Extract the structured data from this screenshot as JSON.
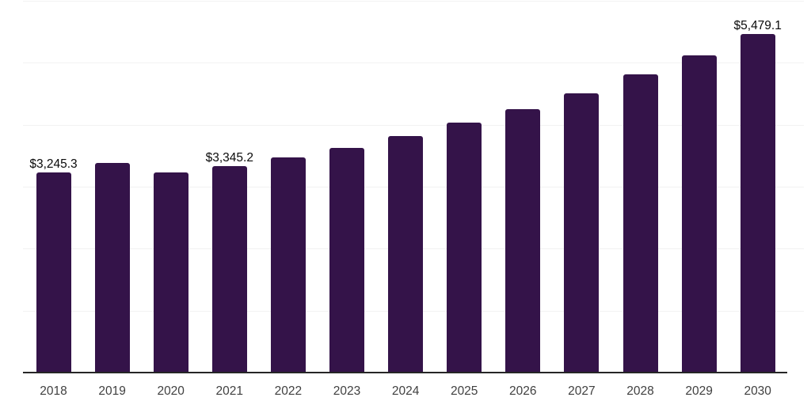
{
  "chart_data": {
    "type": "bar",
    "title": "",
    "xlabel": "",
    "ylabel": "",
    "categories": [
      "2018",
      "2019",
      "2020",
      "2021",
      "2022",
      "2023",
      "2024",
      "2025",
      "2026",
      "2027",
      "2028",
      "2029",
      "2030"
    ],
    "values": [
      3245.3,
      3390,
      3240,
      3345.2,
      3480,
      3640,
      3830,
      4050,
      4265,
      4520,
      4825,
      5130,
      5479.1
    ],
    "value_labels": [
      "$3,245.3",
      "",
      "",
      "$3,345.2",
      "",
      "",
      "",
      "",
      "",
      "",
      "",
      "",
      "$5,479.1"
    ],
    "ylim": [
      0,
      6000
    ],
    "gridline_step": 1000,
    "grid_on": true,
    "legend_position": "none",
    "y_tick_labels_shown": false,
    "colors": {
      "bar": "#341349",
      "gridline": "#f2f2f2",
      "axis_line": "#262626",
      "x_tick_label": "#404040",
      "value_label": "#0a0a0a",
      "background": "#ffffff"
    }
  }
}
